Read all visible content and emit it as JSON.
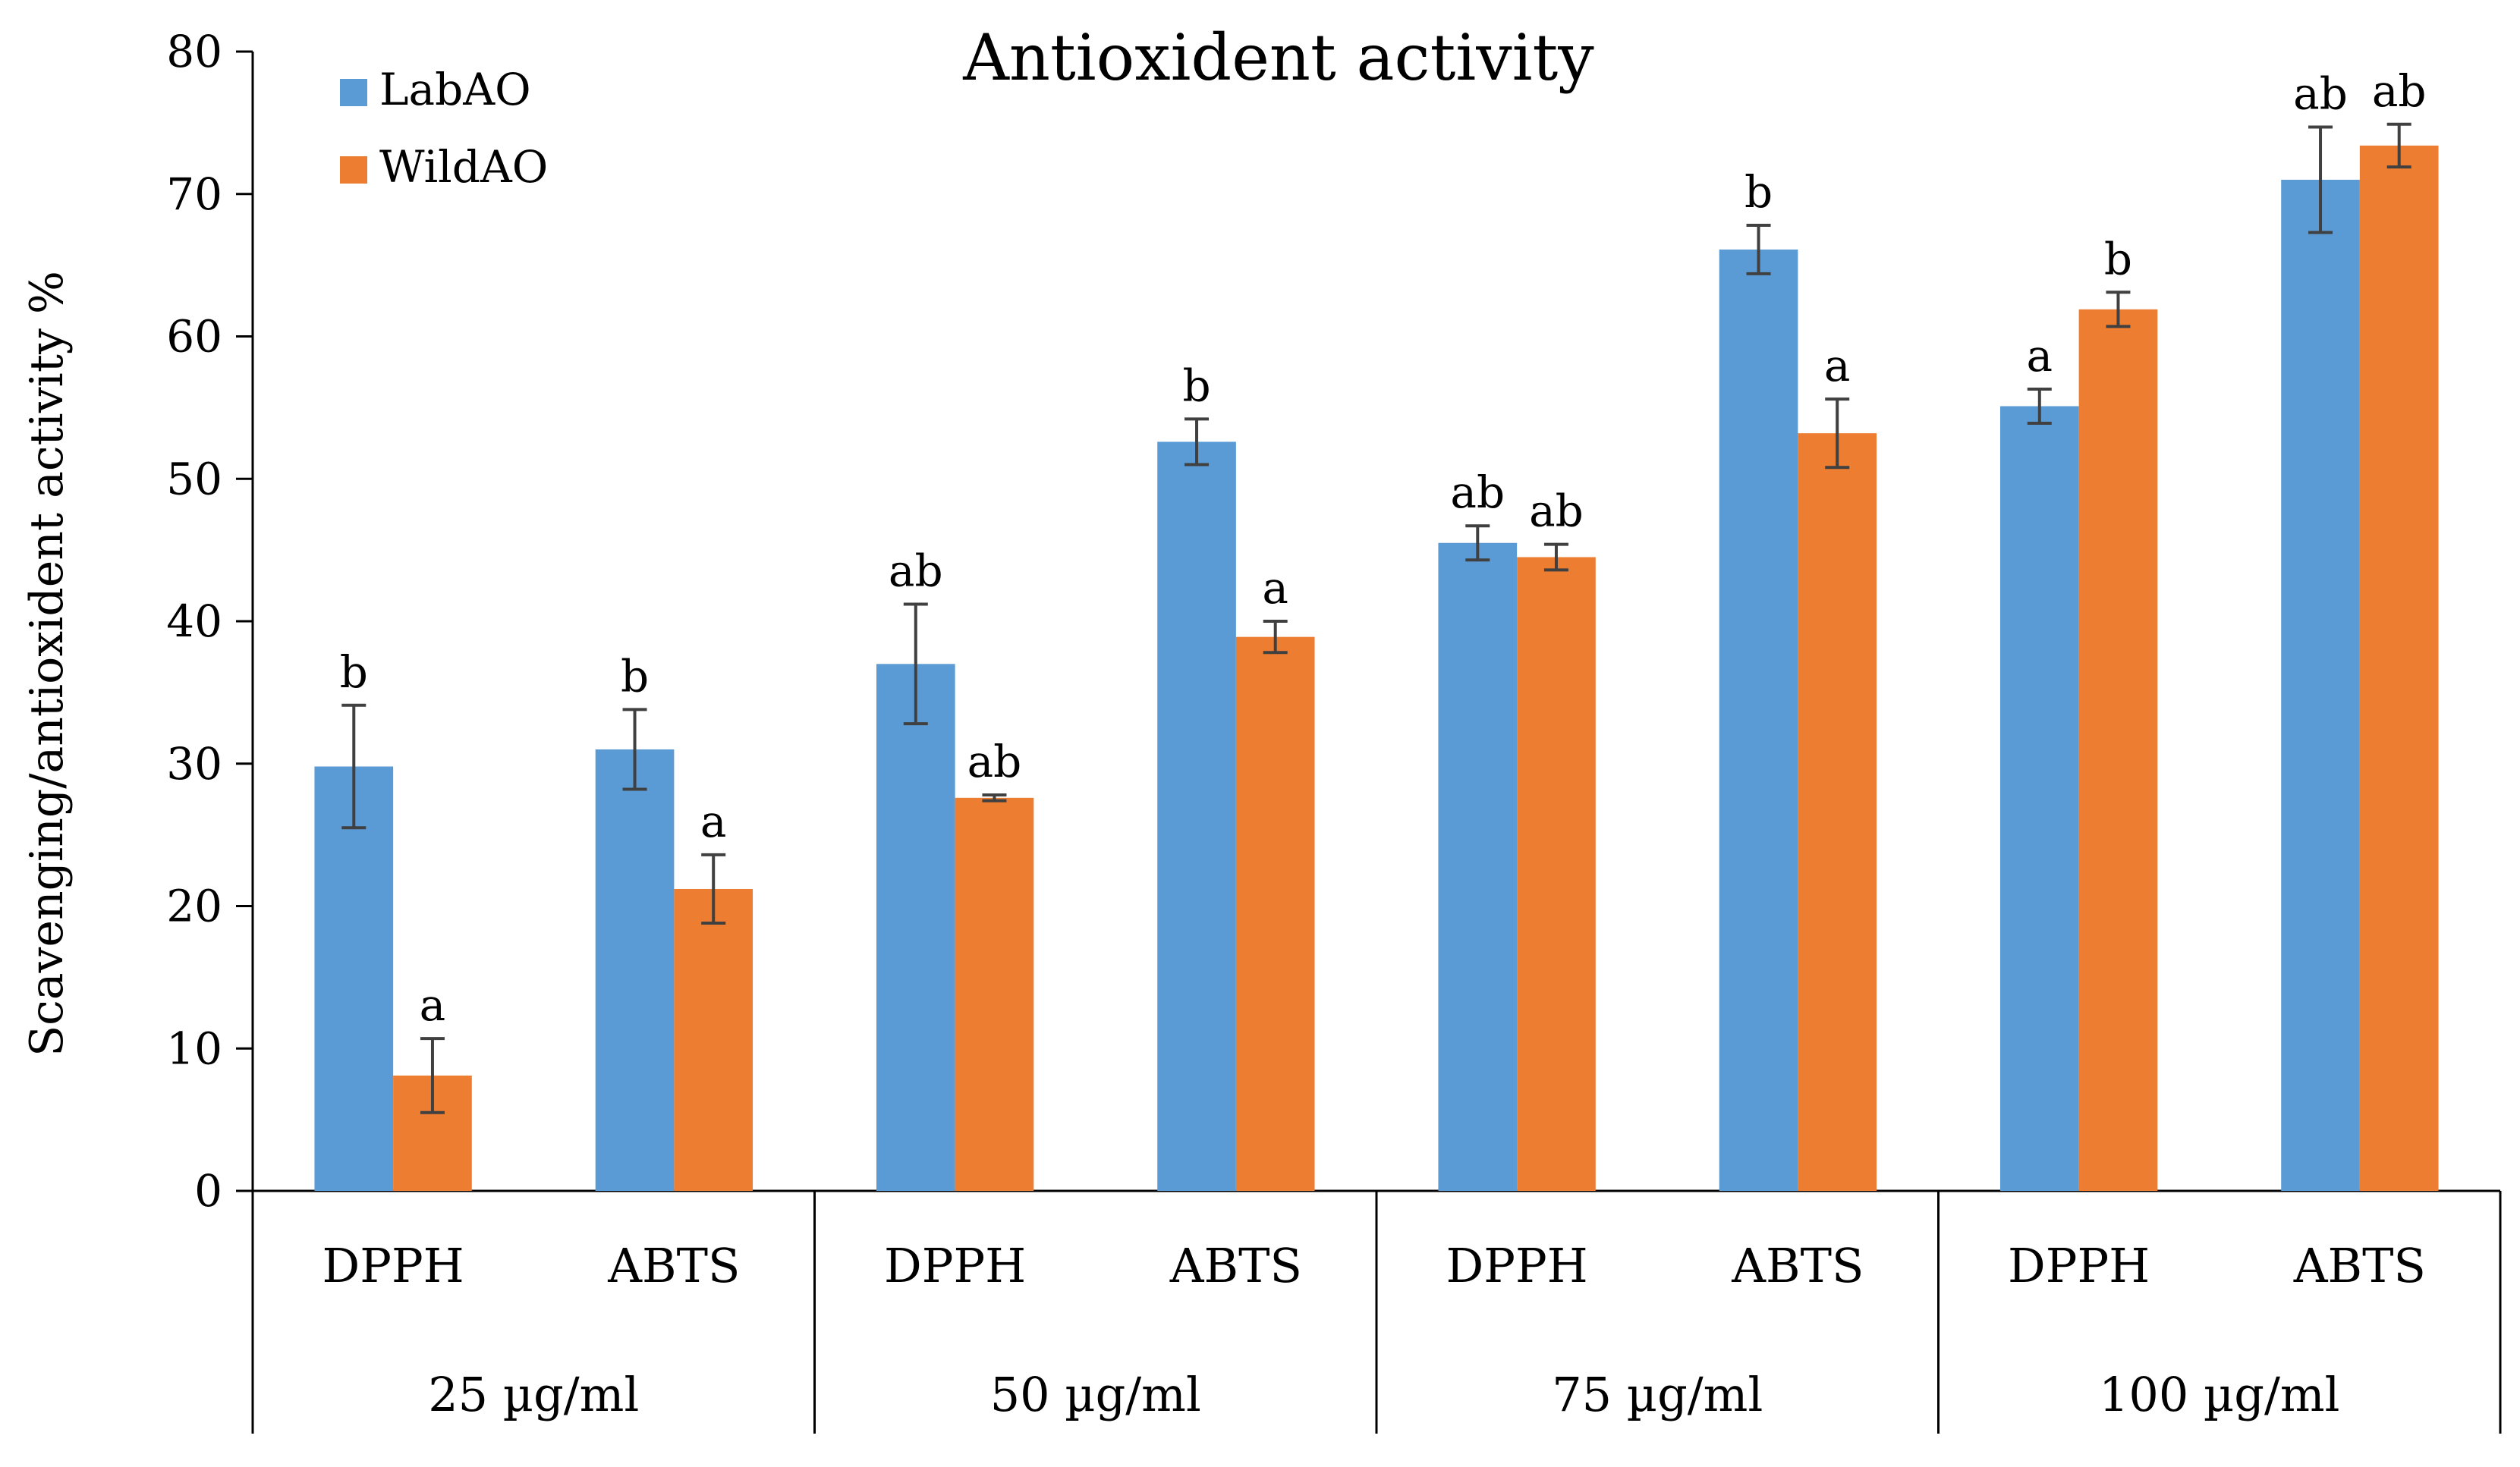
{
  "chart_data": {
    "type": "bar",
    "title": "Antioxident activity",
    "ylabel": "Scavenging/antioxident activity %",
    "xlabel": "",
    "ylim": [
      0,
      80
    ],
    "yticks": [
      "0",
      "10",
      "20",
      "30",
      "40",
      "50",
      "60",
      "70",
      "80"
    ],
    "groups": [
      "25 µg/ml",
      "50 µg/ml",
      "75 µg/ml",
      "100 µg/ml"
    ],
    "categories": [
      "DPPH",
      "ABTS",
      "DPPH",
      "ABTS",
      "DPPH",
      "ABTS",
      "DPPH",
      "ABTS"
    ],
    "legend_position": "top-left",
    "grid": false,
    "series": [
      {
        "name": "LabAO",
        "color": "#5b9bd5",
        "values": [
          29.8,
          31.0,
          37.0,
          52.6,
          45.5,
          66.1,
          55.1,
          71.0
        ],
        "errors": [
          4.3,
          2.8,
          4.2,
          1.6,
          1.2,
          1.7,
          1.2,
          3.7
        ],
        "labels": [
          "b",
          "b",
          "ab",
          "b",
          "ab",
          "b",
          "a",
          "ab"
        ]
      },
      {
        "name": "WildAO",
        "color": "#ed7d31",
        "values": [
          8.1,
          21.2,
          27.6,
          38.9,
          44.5,
          53.2,
          61.9,
          73.4
        ],
        "errors": [
          2.6,
          2.4,
          0.2,
          1.1,
          0.9,
          2.4,
          1.2,
          1.5
        ],
        "labels": [
          "a",
          "a",
          "ab",
          "a",
          "ab",
          "a",
          "b",
          "ab"
        ]
      }
    ]
  }
}
